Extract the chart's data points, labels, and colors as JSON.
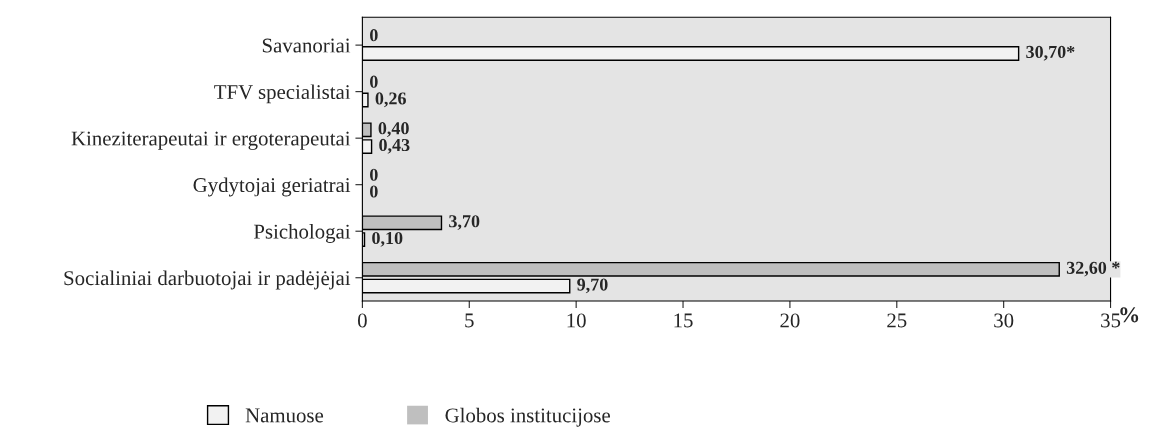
{
  "chart_data": {
    "type": "bar",
    "orientation": "horizontal",
    "xlabel": "%",
    "categories": [
      "Savanoriai",
      "TFV specialistai",
      "Kineziterapeutai ir ergoterapeutai",
      "Gydytojai geriatrai",
      "Psichologai",
      "Socialiniai darbuotojai ir padėjėjai"
    ],
    "series": [
      {
        "name": "Globos institucijose",
        "color": "#bfbfbf",
        "values": [
          0,
          0,
          0.4,
          0,
          3.7,
          32.6
        ],
        "value_labels": [
          "0",
          "0",
          "0,40",
          "0",
          "3,70",
          "32,60 *"
        ]
      },
      {
        "name": "Namuose",
        "color": "#f2f2f2",
        "values": [
          30.7,
          0.26,
          0.43,
          0,
          0.1,
          9.7
        ],
        "value_labels": [
          "30,70*",
          "0,26",
          "0,43",
          "0",
          "0,10",
          "9,70"
        ]
      }
    ],
    "xlim": [
      0,
      35
    ],
    "xticks": [
      0,
      5,
      10,
      15,
      20,
      25,
      30,
      35
    ],
    "grid": false,
    "legend": "bottom"
  }
}
